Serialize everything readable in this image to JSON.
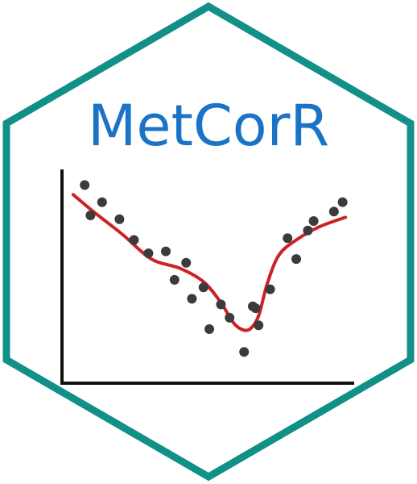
{
  "logo": {
    "title": "MetCorR",
    "colors": {
      "hex_border": "#119088",
      "title": "#1a73c6",
      "axes": "#111111",
      "points": "#3b3b3b",
      "curve": "#cc2226",
      "background": "#ffffff"
    }
  },
  "chart_data": {
    "type": "scatter",
    "title": "",
    "xlabel": "",
    "ylabel": "",
    "grid": false,
    "tick_labels": "none",
    "xlim": [
      0,
      100
    ],
    "ylim": [
      0,
      100
    ],
    "series": [
      {
        "kind": "points",
        "x": [
          7,
          9,
          13,
          19,
          24,
          29,
          35,
          38,
          42,
          44,
          48,
          50,
          54,
          57,
          62,
          65,
          66,
          67,
          71,
          77,
          80,
          84,
          86,
          93,
          96
        ],
        "y": [
          96,
          80,
          87,
          78,
          67,
          60,
          61,
          46,
          55,
          36,
          42,
          20,
          33,
          26,
          8,
          32,
          31,
          22,
          41,
          68,
          57,
          72,
          77,
          82,
          87
        ]
      },
      {
        "kind": "smooth-trend",
        "x": [
          3,
          10,
          20,
          30,
          40,
          48,
          54,
          58,
          61,
          64,
          67,
          70,
          74,
          80,
          88,
          97
        ],
        "y": [
          91,
          82,
          70,
          57,
          52,
          45,
          34,
          24,
          20,
          20,
          27,
          44,
          59,
          67,
          74,
          79
        ]
      }
    ]
  }
}
